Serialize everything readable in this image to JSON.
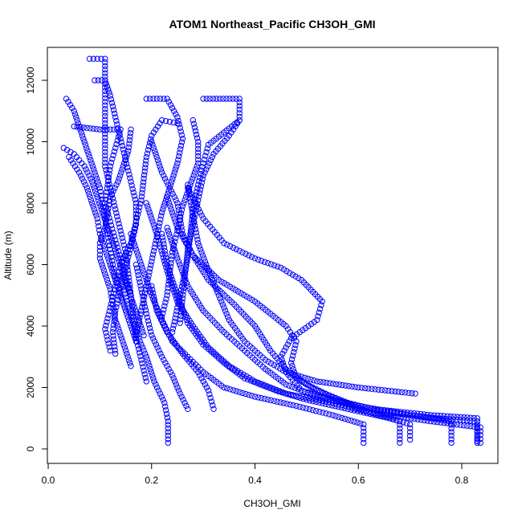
{
  "chart_data": {
    "type": "scatter",
    "title": "ATOM1 Northeast_Pacific CH3OH_GMI",
    "xlabel": "CH3OH_GMI",
    "ylabel": "Altitude (m)",
    "xlim": [
      0.0,
      0.85
    ],
    "ylim": [
      -400,
      12800
    ],
    "x_ticks": [
      "0.0",
      "0.2",
      "0.4",
      "0.6",
      "0.8"
    ],
    "x_tick_values": [
      0.0,
      0.2,
      0.4,
      0.6,
      0.8
    ],
    "y_ticks": [
      "0",
      "2000",
      "4000",
      "6000",
      "8000",
      "10000",
      "12000"
    ],
    "y_tick_values": [
      0,
      2000,
      4000,
      6000,
      8000,
      10000,
      12000
    ],
    "grid": false,
    "marker": "open-circle",
    "color": "#0000ff",
    "series": [
      {
        "points": [
          [
            0.232,
            200
          ],
          [
            0.232,
            900
          ],
          [
            0.225,
            1500
          ],
          [
            0.205,
            2200
          ],
          [
            0.19,
            3000
          ],
          [
            0.17,
            3800
          ],
          [
            0.155,
            4600
          ],
          [
            0.14,
            5600
          ]
        ]
      },
      {
        "points": [
          [
            0.61,
            200
          ],
          [
            0.61,
            800
          ],
          [
            0.55,
            1100
          ],
          [
            0.48,
            1400
          ],
          [
            0.4,
            1700
          ],
          [
            0.34,
            2000
          ],
          [
            0.3,
            2500
          ],
          [
            0.27,
            3000
          ],
          [
            0.24,
            3500
          ],
          [
            0.22,
            4200
          ],
          [
            0.2,
            5000
          ],
          [
            0.18,
            6000
          ],
          [
            0.16,
            7000
          ]
        ]
      },
      {
        "points": [
          [
            0.68,
            200
          ],
          [
            0.68,
            900
          ],
          [
            0.62,
            1200
          ],
          [
            0.55,
            1500
          ],
          [
            0.46,
            1800
          ],
          [
            0.4,
            2200
          ],
          [
            0.35,
            2700
          ],
          [
            0.31,
            3300
          ],
          [
            0.28,
            4000
          ],
          [
            0.25,
            4800
          ],
          [
            0.23,
            5800
          ],
          [
            0.21,
            7000
          ],
          [
            0.19,
            8000
          ]
        ]
      },
      {
        "points": [
          [
            0.7,
            300
          ],
          [
            0.7,
            800
          ],
          [
            0.66,
            1000
          ],
          [
            0.58,
            1300
          ],
          [
            0.5,
            1600
          ],
          [
            0.44,
            1900
          ],
          [
            0.38,
            2300
          ],
          [
            0.34,
            2800
          ],
          [
            0.3,
            3400
          ],
          [
            0.27,
            4100
          ],
          [
            0.25,
            5000
          ],
          [
            0.23,
            6000
          ],
          [
            0.22,
            7000
          ]
        ]
      },
      {
        "points": [
          [
            0.78,
            200
          ],
          [
            0.78,
            900
          ],
          [
            0.7,
            1100
          ],
          [
            0.6,
            1400
          ],
          [
            0.52,
            1700
          ],
          [
            0.46,
            2100
          ],
          [
            0.42,
            2600
          ],
          [
            0.38,
            3200
          ],
          [
            0.34,
            3800
          ],
          [
            0.3,
            4500
          ],
          [
            0.27,
            5300
          ],
          [
            0.25,
            6200
          ],
          [
            0.23,
            7200
          ]
        ]
      },
      {
        "points": [
          [
            0.83,
            200
          ],
          [
            0.83,
            900
          ],
          [
            0.75,
            1000
          ],
          [
            0.65,
            1200
          ],
          [
            0.58,
            1500
          ],
          [
            0.52,
            1900
          ],
          [
            0.48,
            2300
          ],
          [
            0.47,
            2800
          ],
          [
            0.48,
            3500
          ],
          [
            0.46,
            4000
          ],
          [
            0.4,
            4800
          ],
          [
            0.33,
            5500
          ],
          [
            0.28,
            6300
          ],
          [
            0.25,
            7200
          ],
          [
            0.23,
            8200
          ]
        ]
      },
      {
        "points": [
          [
            0.83,
            250
          ],
          [
            0.83,
            1000
          ],
          [
            0.74,
            1100
          ],
          [
            0.63,
            1300
          ],
          [
            0.55,
            1600
          ],
          [
            0.49,
            1900
          ],
          [
            0.46,
            2500
          ],
          [
            0.45,
            3000
          ],
          [
            0.47,
            3600
          ],
          [
            0.52,
            4200
          ],
          [
            0.53,
            4800
          ],
          [
            0.49,
            5500
          ],
          [
            0.45,
            5900
          ],
          [
            0.4,
            6200
          ],
          [
            0.34,
            6700
          ],
          [
            0.3,
            7500
          ],
          [
            0.27,
            8500
          ]
        ]
      },
      {
        "points": [
          [
            0.836,
            200
          ],
          [
            0.836,
            700
          ],
          [
            0.74,
            900
          ],
          [
            0.62,
            1200
          ],
          [
            0.56,
            1600
          ],
          [
            0.5,
            2100
          ],
          [
            0.46,
            2600
          ],
          [
            0.43,
            3200
          ],
          [
            0.4,
            4000
          ],
          [
            0.36,
            4700
          ],
          [
            0.31,
            5500
          ],
          [
            0.28,
            6300
          ],
          [
            0.26,
            7000
          ],
          [
            0.25,
            8000
          ],
          [
            0.22,
            9000
          ],
          [
            0.2,
            10000
          ]
        ]
      },
      {
        "points": [
          [
            0.27,
            1300
          ],
          [
            0.255,
            1800
          ],
          [
            0.24,
            2400
          ],
          [
            0.22,
            3000
          ],
          [
            0.2,
            3700
          ],
          [
            0.19,
            4400
          ],
          [
            0.18,
            5200
          ],
          [
            0.17,
            6000
          ]
        ]
      },
      {
        "points": [
          [
            0.32,
            1300
          ],
          [
            0.31,
            1900
          ],
          [
            0.29,
            2500
          ],
          [
            0.26,
            3100
          ],
          [
            0.23,
            3800
          ],
          [
            0.21,
            4500
          ],
          [
            0.2,
            5300
          ]
        ]
      },
      {
        "points": [
          [
            0.71,
            1800
          ],
          [
            0.6,
            2000
          ],
          [
            0.52,
            2200
          ],
          [
            0.46,
            2500
          ],
          [
            0.42,
            2900
          ],
          [
            0.38,
            3500
          ],
          [
            0.35,
            4200
          ],
          [
            0.33,
            5000
          ],
          [
            0.31,
            5800
          ],
          [
            0.29,
            6700
          ],
          [
            0.28,
            7600
          ],
          [
            0.27,
            8600
          ]
        ]
      },
      {
        "points": [
          [
            0.25,
            10600
          ],
          [
            0.22,
            10700
          ],
          [
            0.2,
            10200
          ],
          [
            0.19,
            9500
          ],
          [
            0.185,
            8800
          ],
          [
            0.18,
            8100
          ],
          [
            0.17,
            7400
          ],
          [
            0.16,
            6700
          ],
          [
            0.14,
            6000
          ],
          [
            0.13,
            5300
          ],
          [
            0.12,
            4600
          ],
          [
            0.11,
            3900
          ],
          [
            0.12,
            3200
          ]
        ]
      },
      {
        "points": [
          [
            0.28,
            10700
          ],
          [
            0.29,
            10000
          ],
          [
            0.29,
            9300
          ],
          [
            0.275,
            8600
          ],
          [
            0.26,
            7900
          ],
          [
            0.25,
            7100
          ],
          [
            0.24,
            6400
          ],
          [
            0.235,
            5700
          ],
          [
            0.23,
            5000
          ],
          [
            0.22,
            4300
          ]
        ]
      },
      {
        "points": [
          [
            0.19,
            11400
          ],
          [
            0.23,
            11400
          ],
          [
            0.25,
            10800
          ],
          [
            0.26,
            10100
          ],
          [
            0.25,
            9300
          ],
          [
            0.235,
            8500
          ],
          [
            0.22,
            7700
          ],
          [
            0.21,
            6900
          ],
          [
            0.2,
            6100
          ],
          [
            0.19,
            5300
          ],
          [
            0.18,
            4500
          ],
          [
            0.17,
            3700
          ]
        ]
      },
      {
        "points": [
          [
            0.3,
            11400
          ],
          [
            0.37,
            11400
          ],
          [
            0.37,
            10700
          ],
          [
            0.34,
            10300
          ],
          [
            0.31,
            9900
          ],
          [
            0.3,
            9300
          ],
          [
            0.29,
            8600
          ],
          [
            0.28,
            7800
          ],
          [
            0.275,
            7000
          ],
          [
            0.27,
            6200
          ],
          [
            0.26,
            5400
          ],
          [
            0.25,
            4600
          ],
          [
            0.24,
            3800
          ]
        ]
      },
      {
        "points": [
          [
            0.37,
            10700
          ],
          [
            0.35,
            10200
          ],
          [
            0.32,
            9600
          ],
          [
            0.3,
            8900
          ],
          [
            0.29,
            8100
          ],
          [
            0.28,
            7300
          ],
          [
            0.27,
            6500
          ],
          [
            0.265,
            5700
          ],
          [
            0.26,
            4900
          ],
          [
            0.255,
            4100
          ]
        ]
      },
      {
        "points": [
          [
            0.08,
            12700
          ],
          [
            0.11,
            12700
          ],
          [
            0.11,
            12000
          ],
          [
            0.12,
            11500
          ],
          [
            0.13,
            10800
          ],
          [
            0.14,
            10100
          ],
          [
            0.15,
            9400
          ],
          [
            0.16,
            8700
          ],
          [
            0.17,
            8000
          ],
          [
            0.17,
            7300
          ],
          [
            0.16,
            6600
          ],
          [
            0.15,
            5900
          ],
          [
            0.14,
            5200
          ],
          [
            0.13,
            4500
          ],
          [
            0.125,
            3800
          ],
          [
            0.13,
            3100
          ]
        ]
      },
      {
        "points": [
          [
            0.09,
            12000
          ],
          [
            0.11,
            12000
          ],
          [
            0.11,
            11300
          ],
          [
            0.11,
            10600
          ],
          [
            0.11,
            9900
          ],
          [
            0.11,
            9200
          ],
          [
            0.12,
            8500
          ],
          [
            0.13,
            7800
          ],
          [
            0.14,
            7100
          ],
          [
            0.15,
            6400
          ],
          [
            0.155,
            5700
          ],
          [
            0.16,
            5000
          ],
          [
            0.165,
            4300
          ],
          [
            0.17,
            3600
          ],
          [
            0.18,
            2900
          ],
          [
            0.19,
            2200
          ]
        ]
      },
      {
        "points": [
          [
            0.035,
            11400
          ],
          [
            0.05,
            11000
          ],
          [
            0.06,
            10500
          ],
          [
            0.07,
            10000
          ],
          [
            0.08,
            9500
          ],
          [
            0.09,
            9000
          ],
          [
            0.1,
            8500
          ],
          [
            0.105,
            8000
          ],
          [
            0.11,
            7500
          ],
          [
            0.115,
            7000
          ],
          [
            0.12,
            6500
          ],
          [
            0.125,
            6000
          ],
          [
            0.13,
            5500
          ],
          [
            0.14,
            5000
          ],
          [
            0.15,
            4500
          ],
          [
            0.16,
            4000
          ],
          [
            0.17,
            3500
          ]
        ]
      },
      {
        "points": [
          [
            0.03,
            9800
          ],
          [
            0.05,
            9600
          ],
          [
            0.07,
            9200
          ],
          [
            0.085,
            8700
          ],
          [
            0.095,
            8200
          ],
          [
            0.105,
            7700
          ],
          [
            0.115,
            7200
          ],
          [
            0.125,
            6700
          ],
          [
            0.135,
            6200
          ],
          [
            0.145,
            5700
          ],
          [
            0.155,
            5200
          ],
          [
            0.165,
            4700
          ],
          [
            0.175,
            4200
          ],
          [
            0.185,
            3700
          ]
        ]
      },
      {
        "points": [
          [
            0.05,
            10500
          ],
          [
            0.1,
            10400
          ],
          [
            0.14,
            10400
          ],
          [
            0.13,
            9800
          ],
          [
            0.12,
            9200
          ],
          [
            0.115,
            8600
          ],
          [
            0.11,
            8000
          ],
          [
            0.12,
            7400
          ],
          [
            0.13,
            6800
          ],
          [
            0.14,
            6200
          ],
          [
            0.15,
            5600
          ],
          [
            0.16,
            5000
          ]
        ]
      },
      {
        "points": [
          [
            0.04,
            9500
          ],
          [
            0.06,
            9000
          ],
          [
            0.075,
            8500
          ],
          [
            0.085,
            8000
          ],
          [
            0.095,
            7500
          ],
          [
            0.1,
            7000
          ],
          [
            0.11,
            6500
          ],
          [
            0.12,
            6000
          ],
          [
            0.13,
            5500
          ],
          [
            0.14,
            5000
          ],
          [
            0.15,
            4500
          ]
        ]
      },
      {
        "points": [
          [
            0.16,
            10400
          ],
          [
            0.155,
            9700
          ],
          [
            0.145,
            9200
          ],
          [
            0.135,
            8700
          ],
          [
            0.12,
            8200
          ],
          [
            0.115,
            7700
          ],
          [
            0.11,
            7200
          ],
          [
            0.1,
            6700
          ],
          [
            0.1,
            6200
          ],
          [
            0.11,
            5700
          ],
          [
            0.12,
            5200
          ],
          [
            0.125,
            4700
          ],
          [
            0.13,
            4200
          ],
          [
            0.14,
            3700
          ],
          [
            0.15,
            3200
          ],
          [
            0.16,
            2700
          ]
        ]
      }
    ]
  }
}
